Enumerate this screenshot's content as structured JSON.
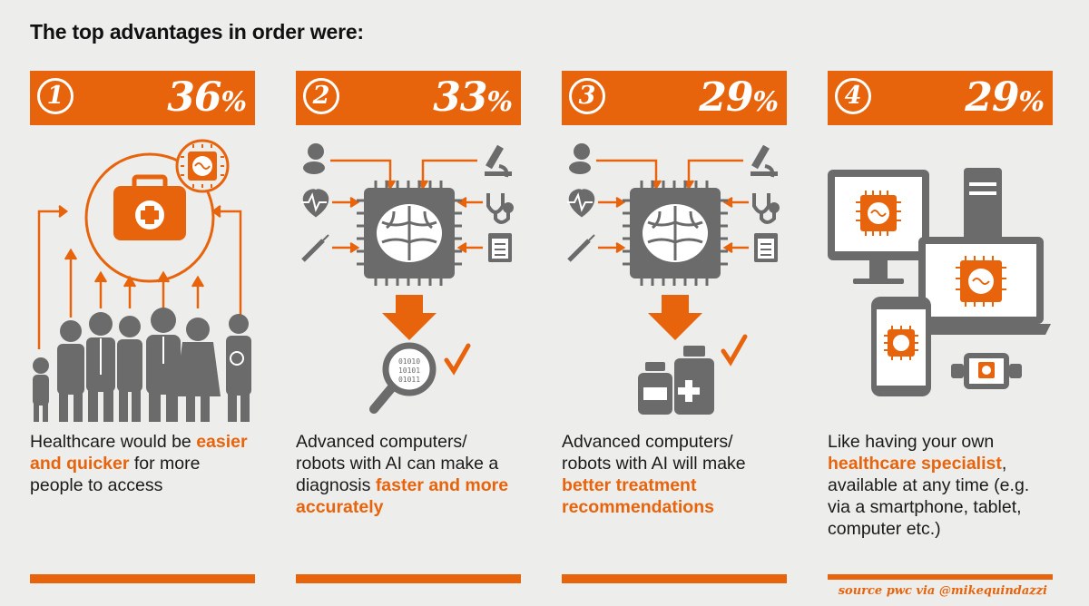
{
  "title": "The top advantages in order were:",
  "colors": {
    "accent": "#e8640c",
    "icon_gray": "#6b6b6b",
    "background": "#ededeb"
  },
  "advantages": [
    {
      "rank": "1",
      "percent_number": "36",
      "percent_sign": "%",
      "text_before": "Healthcare would be ",
      "highlight": "easier and quicker",
      "text_after": " for more people to access",
      "icons": [
        "first-aid-kit-icon",
        "ai-chip-icon",
        "family-people-icon"
      ]
    },
    {
      "rank": "2",
      "percent_number": "33",
      "percent_sign": "%",
      "text_before": "Advanced computers/ robots with AI can make a diagnosis ",
      "highlight": "faster and more accurately",
      "text_after": "",
      "icons": [
        "pills-icon",
        "heartbeat-icon",
        "syringe-icon",
        "microscope-icon",
        "stethoscope-icon",
        "clipboard-icon",
        "ai-chip-icon",
        "magnifier-binary-icon",
        "checkmark-icon"
      ]
    },
    {
      "rank": "3",
      "percent_number": "29",
      "percent_sign": "%",
      "text_before": "Advanced computers/ robots with AI will make ",
      "highlight": "better treatment recommendations",
      "text_after": "",
      "icons": [
        "pills-icon",
        "heartbeat-icon",
        "syringe-icon",
        "microscope-icon",
        "stethoscope-icon",
        "clipboard-icon",
        "ai-chip-icon",
        "medicine-bottles-icon",
        "checkmark-icon"
      ]
    },
    {
      "rank": "4",
      "percent_number": "29",
      "percent_sign": "%",
      "text_before": "Like having your own ",
      "highlight": "healthcare specialist",
      "text_after": ", available at any time (e.g. via a smartphone, tablet, computer etc.)",
      "icons": [
        "desktop-computer-icon",
        "laptop-icon",
        "smartphone-icon",
        "smartwatch-icon",
        "ai-chip-icon"
      ]
    }
  ],
  "source": "source pwc via @mikequindazzi"
}
